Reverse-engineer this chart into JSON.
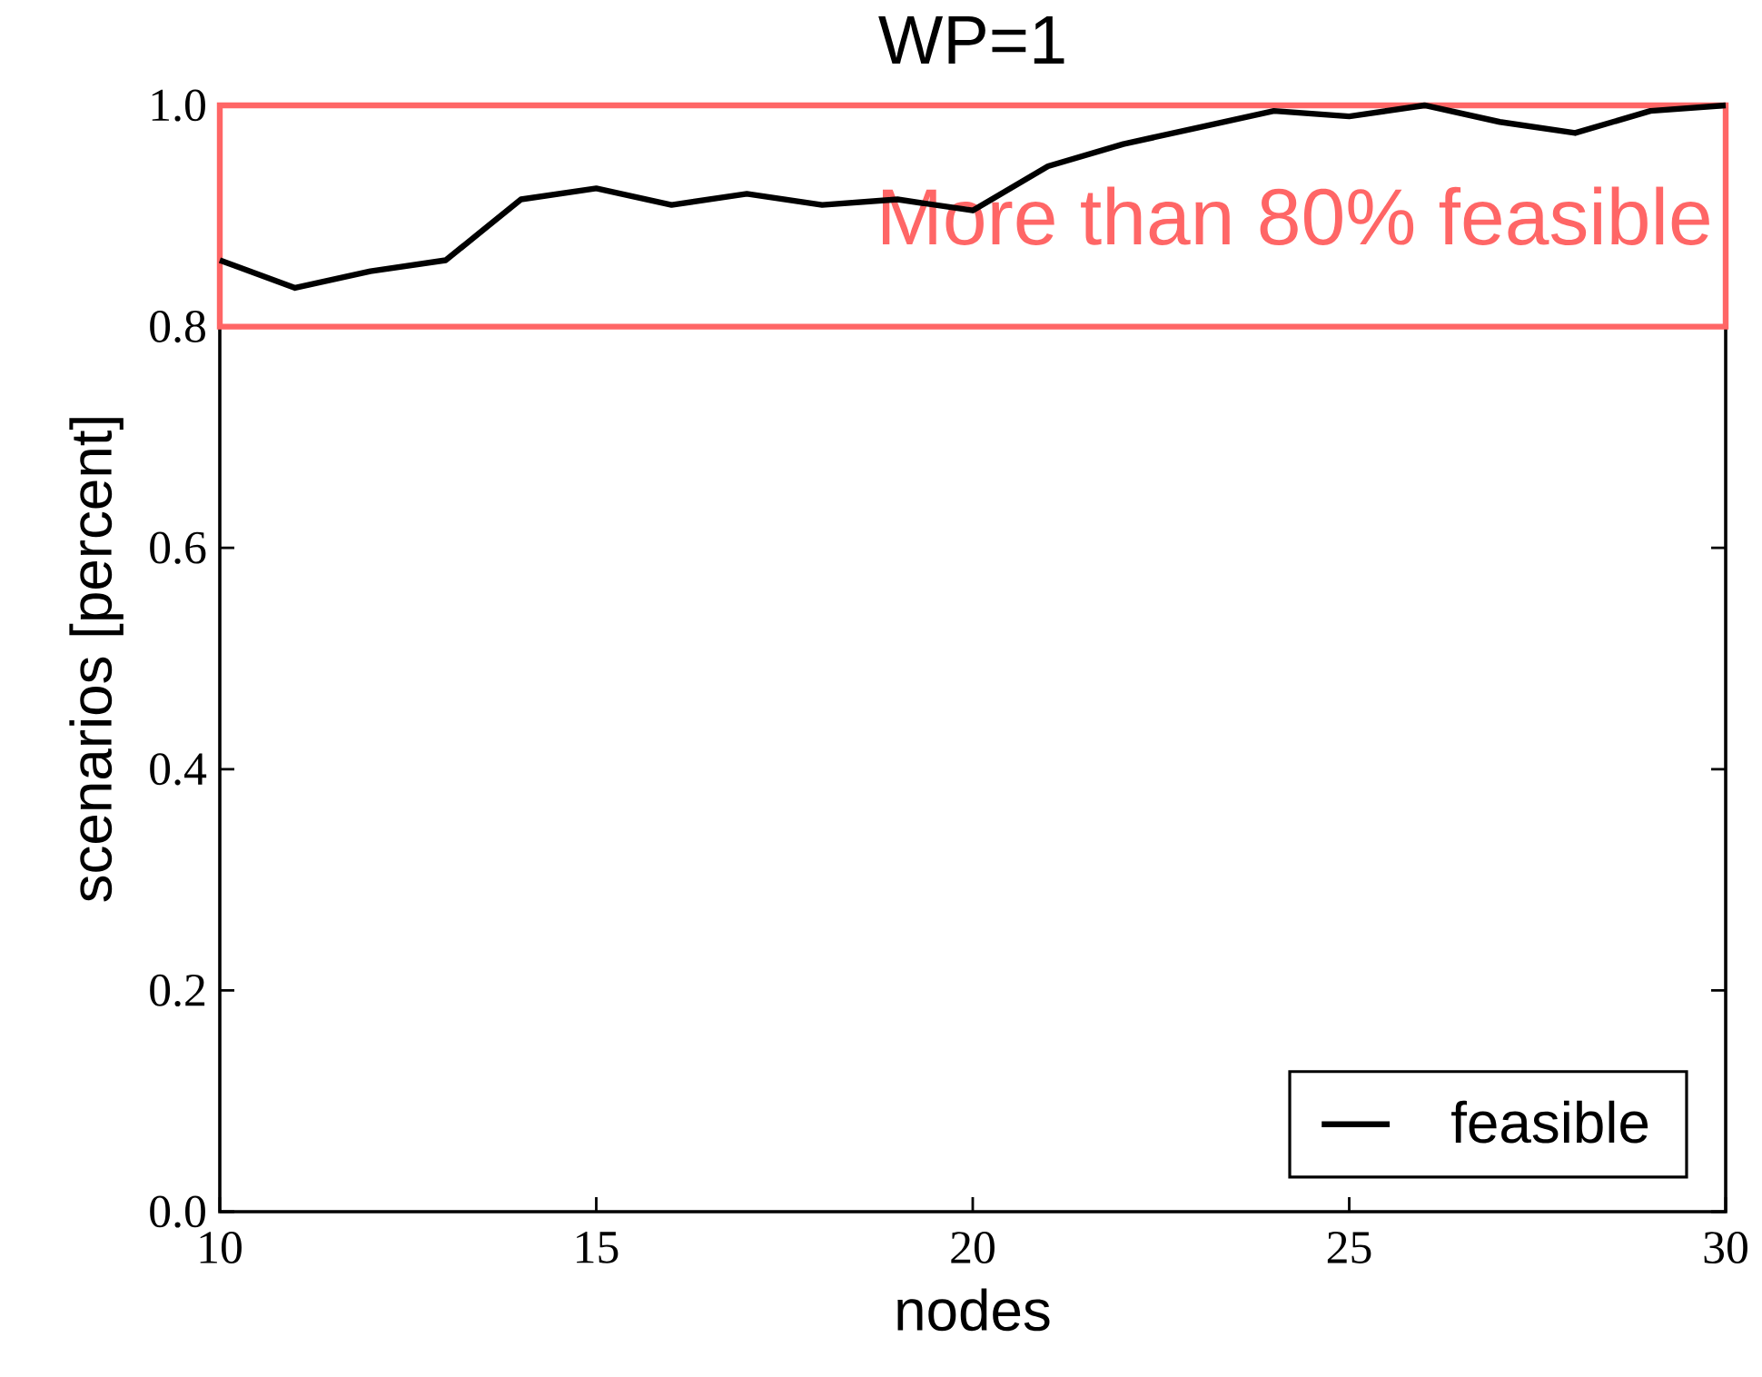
{
  "chart_data": {
    "type": "line",
    "title": "WP=1",
    "xlabel": "nodes",
    "ylabel": "scenarios [percent]",
    "x": [
      10,
      11,
      12,
      13,
      14,
      15,
      16,
      17,
      18,
      19,
      20,
      21,
      22,
      23,
      24,
      25,
      26,
      27,
      28,
      29,
      30
    ],
    "series": [
      {
        "name": "feasible",
        "color": "#000000",
        "values": [
          0.86,
          0.835,
          0.85,
          0.86,
          0.915,
          0.925,
          0.91,
          0.92,
          0.91,
          0.915,
          0.905,
          0.945,
          0.965,
          0.98,
          0.995,
          0.99,
          1.0,
          0.985,
          0.975,
          0.995,
          1.0
        ]
      }
    ],
    "xlim": [
      10,
      30
    ],
    "ylim": [
      0,
      1
    ],
    "xticks": [
      10,
      15,
      20,
      25,
      30
    ],
    "yticks": [
      {
        "value": 0,
        "label": "0.0"
      },
      {
        "value": 0.2,
        "label": "0.2"
      },
      {
        "value": 0.4,
        "label": "0.4"
      },
      {
        "value": 0.6,
        "label": "0.6"
      },
      {
        "value": 0.8,
        "label": "0.8"
      },
      {
        "value": 1.0,
        "label": "1.0"
      }
    ],
    "bands": [
      {
        "axis": "y",
        "from": 0.8,
        "to": 1.0,
        "label": "More than 80% feasible",
        "color": "#ff6666"
      }
    ],
    "legend": "bottom right",
    "marker": "none",
    "line_style": "solid",
    "grid": false
  }
}
